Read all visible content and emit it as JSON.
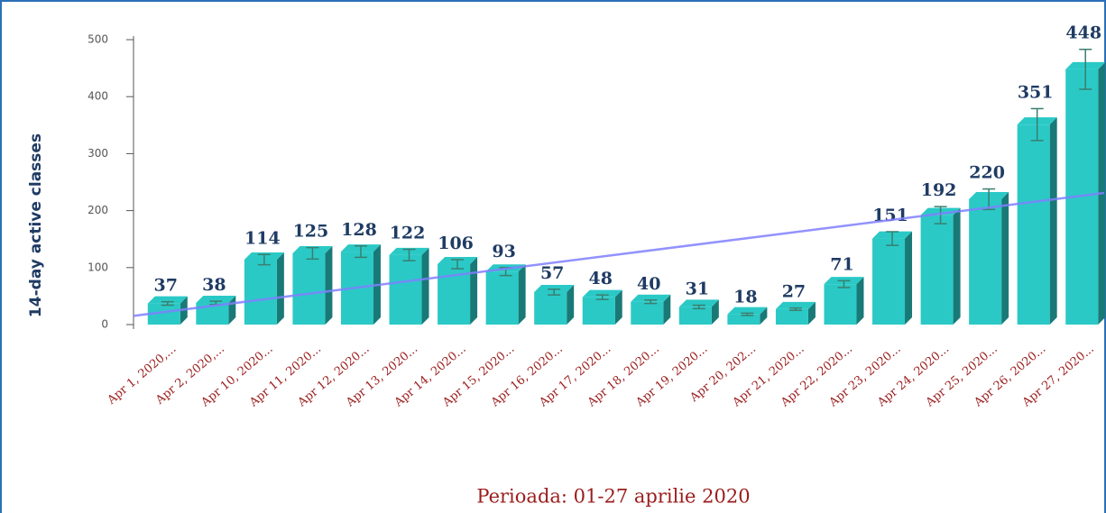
{
  "chart_data": {
    "type": "bar",
    "title": "Perioada: 01-27 aprilie 2020",
    "y_label": "14-day active classes",
    "categories": [
      "Apr 1, 2020,...",
      "Apr 2, 2020,...",
      "Apr 10, 2020...",
      "Apr 11, 2020...",
      "Apr 12, 2020...",
      "Apr 13, 2020...",
      "Apr 14, 2020...",
      "Apr 15, 2020...",
      "Apr 16, 2020...",
      "Apr 17, 2020...",
      "Apr 18, 2020...",
      "Apr 19, 2020...",
      "Apr 20, 202...",
      "Apr 21, 2020...",
      "Apr 22, 2020...",
      "Apr 23, 2020...",
      "Apr 24, 2020...",
      "Apr 25, 2020...",
      "Apr 26, 2020...",
      "Apr 27, 2020..."
    ],
    "values": [
      37,
      38,
      114,
      125,
      128,
      122,
      106,
      93,
      57,
      48,
      40,
      31,
      18,
      27,
      71,
      151,
      192,
      220,
      351,
      448
    ],
    "errors": [
      3,
      3,
      9,
      10,
      10,
      10,
      8,
      7,
      5,
      4,
      3,
      3,
      2,
      2,
      6,
      12,
      15,
      18,
      28,
      35
    ],
    "color": "#2ac9c6",
    "trendline": {
      "color": "#8080ff",
      "values": [
        22,
        226
      ]
    },
    "ylim": [
      0,
      500
    ],
    "yticks": [
      0,
      100,
      200,
      300,
      400,
      500
    ]
  }
}
